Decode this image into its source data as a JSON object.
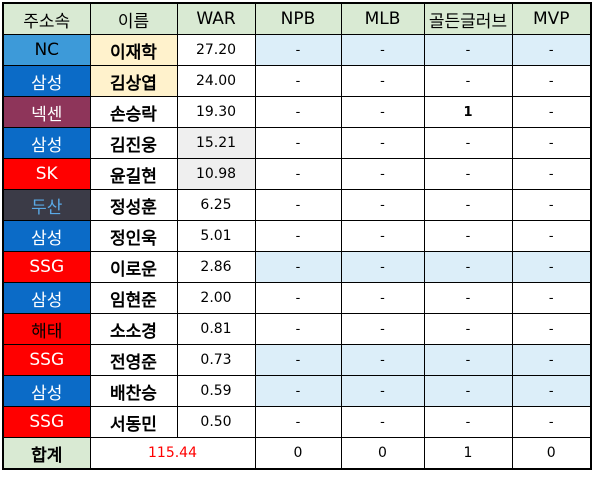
{
  "colors": {
    "header_bg": "#d9ead3",
    "name_highlight": "#fff2cc",
    "war_highlight": "#efefef",
    "stat_highlight": "#dceef9",
    "total_war_text": "#ff0000"
  },
  "headers": [
    "주소속",
    "이름",
    "WAR",
    "NPB",
    "MLB",
    "골든글러브",
    "MVP"
  ],
  "rows": [
    {
      "team": "NC",
      "team_bg": "#3d9ad9",
      "team_fg": "#000000",
      "name": "이재학",
      "name_hl": true,
      "war": "27.20",
      "war_hl": false,
      "npb": "-",
      "mlb": "-",
      "gg": "-",
      "mvp": "-",
      "stat_hl": true,
      "gg_bold": false
    },
    {
      "team": "삼성",
      "team_bg": "#0b6bc7",
      "team_fg": "#ffffff",
      "name": "김상엽",
      "name_hl": true,
      "war": "24.00",
      "war_hl": false,
      "npb": "-",
      "mlb": "-",
      "gg": "-",
      "mvp": "-",
      "stat_hl": false,
      "gg_bold": false
    },
    {
      "team": "넥센",
      "team_bg": "#8e355a",
      "team_fg": "#ffffff",
      "name": "손승락",
      "name_hl": false,
      "war": "19.30",
      "war_hl": false,
      "npb": "-",
      "mlb": "-",
      "gg": "1",
      "mvp": "-",
      "stat_hl": false,
      "gg_bold": true
    },
    {
      "team": "삼성",
      "team_bg": "#0b6bc7",
      "team_fg": "#ffffff",
      "name": "김진웅",
      "name_hl": false,
      "war": "15.21",
      "war_hl": true,
      "npb": "-",
      "mlb": "-",
      "gg": "-",
      "mvp": "-",
      "stat_hl": false,
      "gg_bold": false
    },
    {
      "team": "SK",
      "team_bg": "#ff0000",
      "team_fg": "#ffffff",
      "name": "윤길현",
      "name_hl": false,
      "war": "10.98",
      "war_hl": true,
      "npb": "-",
      "mlb": "-",
      "gg": "-",
      "mvp": "-",
      "stat_hl": false,
      "gg_bold": false
    },
    {
      "team": "두산",
      "team_bg": "#3b3b47",
      "team_fg": "#5aa9e6",
      "name": "정성훈",
      "name_hl": false,
      "war": "6.25",
      "war_hl": false,
      "npb": "-",
      "mlb": "-",
      "gg": "-",
      "mvp": "-",
      "stat_hl": false,
      "gg_bold": false
    },
    {
      "team": "삼성",
      "team_bg": "#0b6bc7",
      "team_fg": "#ffffff",
      "name": "정인욱",
      "name_hl": false,
      "war": "5.01",
      "war_hl": false,
      "npb": "-",
      "mlb": "-",
      "gg": "-",
      "mvp": "-",
      "stat_hl": false,
      "gg_bold": false
    },
    {
      "team": "SSG",
      "team_bg": "#ff0000",
      "team_fg": "#ffffff",
      "name": "이로운",
      "name_hl": false,
      "war": "2.86",
      "war_hl": false,
      "npb": "-",
      "mlb": "-",
      "gg": "-",
      "mvp": "-",
      "stat_hl": true,
      "gg_bold": false
    },
    {
      "team": "삼성",
      "team_bg": "#0b6bc7",
      "team_fg": "#ffffff",
      "name": "임현준",
      "name_hl": false,
      "war": "2.00",
      "war_hl": false,
      "npb": "-",
      "mlb": "-",
      "gg": "-",
      "mvp": "-",
      "stat_hl": false,
      "gg_bold": false
    },
    {
      "team": "해태",
      "team_bg": "#ff0000",
      "team_fg": "#000000",
      "name": "소소경",
      "name_hl": false,
      "war": "0.81",
      "war_hl": false,
      "npb": "-",
      "mlb": "-",
      "gg": "-",
      "mvp": "-",
      "stat_hl": false,
      "gg_bold": false
    },
    {
      "team": "SSG",
      "team_bg": "#ff0000",
      "team_fg": "#ffffff",
      "name": "전영준",
      "name_hl": false,
      "war": "0.73",
      "war_hl": false,
      "npb": "-",
      "mlb": "-",
      "gg": "-",
      "mvp": "-",
      "stat_hl": true,
      "gg_bold": false
    },
    {
      "team": "삼성",
      "team_bg": "#0b6bc7",
      "team_fg": "#ffffff",
      "name": "배찬승",
      "name_hl": false,
      "war": "0.59",
      "war_hl": false,
      "npb": "-",
      "mlb": "-",
      "gg": "-",
      "mvp": "-",
      "stat_hl": true,
      "gg_bold": false
    },
    {
      "team": "SSG",
      "team_bg": "#ff0000",
      "team_fg": "#ffffff",
      "name": "서동민",
      "name_hl": false,
      "war": "0.50",
      "war_hl": false,
      "npb": "-",
      "mlb": "-",
      "gg": "-",
      "mvp": "-",
      "stat_hl": false,
      "gg_bold": false
    }
  ],
  "total": {
    "label": "합계",
    "war": "115.44",
    "npb": "0",
    "mlb": "0",
    "gg": "1",
    "mvp": "0"
  }
}
